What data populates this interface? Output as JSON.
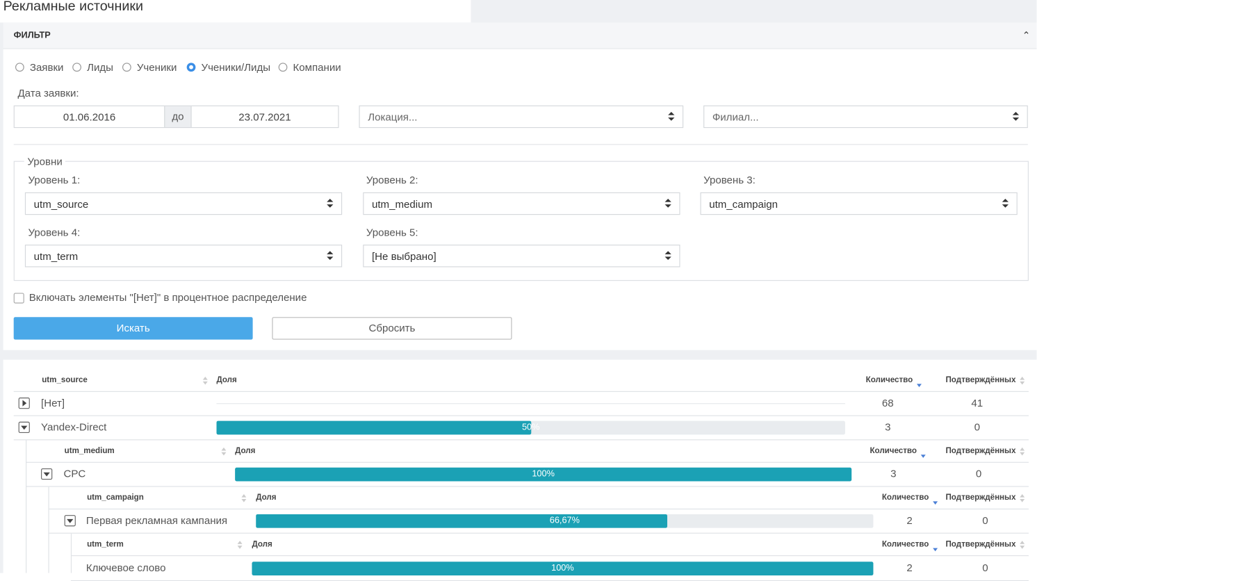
{
  "page": {
    "title": "Рекламные источники"
  },
  "filter": {
    "title": "ФИЛЬТР",
    "modes": [
      {
        "label": "Заявки",
        "selected": false
      },
      {
        "label": "Лиды",
        "selected": false
      },
      {
        "label": "Ученики",
        "selected": false
      },
      {
        "label": "Ученики/Лиды",
        "selected": true
      },
      {
        "label": "Компании",
        "selected": false
      }
    ],
    "date_label": "Дата заявки:",
    "date_from": "01.06.2016",
    "date_sep": "до",
    "date_to": "23.07.2021",
    "location": "Локация...",
    "branch": "Филиал...",
    "levels_title": "Уровни",
    "levels": [
      {
        "label": "Уровень 1:",
        "value": "utm_source"
      },
      {
        "label": "Уровень 2:",
        "value": "utm_medium"
      },
      {
        "label": "Уровень 3:",
        "value": "utm_campaign"
      },
      {
        "label": "Уровень 4:",
        "value": "utm_term"
      },
      {
        "label": "Уровень 5:",
        "value": "[Не выбрано]"
      }
    ],
    "include_none": "Включать элементы \"[Нет]\" в процентное распределение",
    "search": "Искать",
    "reset": "Сбросить"
  },
  "report": {
    "blocks": [
      {
        "header": {
          "name": "utm_source",
          "share": "Доля",
          "count": "Количество",
          "confirmed": "Подтверждённых"
        },
        "rows": [
          {
            "name": "[Нет]",
            "toggle": "collapsed",
            "count": 68,
            "confirmed": 41
          },
          {
            "name": "Yandex-Direct",
            "toggle": "expanded",
            "share": {
              "value": 50,
              "label": "50%"
            },
            "count": 3,
            "confirmed": 0
          }
        ]
      },
      {
        "header": {
          "name": "utm_medium",
          "share": "Доля",
          "count": "Количество",
          "confirmed": "Подтверждённых"
        },
        "rows": [
          {
            "name": "CPC",
            "toggle": "expanded",
            "share": {
              "value": 100,
              "label": "100%"
            },
            "count": 3,
            "confirmed": 0
          }
        ]
      },
      {
        "header": {
          "name": "utm_campaign",
          "share": "Доля",
          "count": "Количество",
          "confirmed": "Подтверждённых"
        },
        "rows": [
          {
            "name": "Первая рекламная кампания",
            "toggle": "expanded",
            "share": {
              "value": 66.67,
              "label": "66,67%"
            },
            "count": 2,
            "confirmed": 0
          }
        ]
      },
      {
        "header": {
          "name": "utm_term",
          "share": "Доля",
          "count": "Количество",
          "confirmed": "Подтверждённых"
        },
        "rows": [
          {
            "name": "Ключевое слово",
            "share": {
              "value": 100,
              "label": "100%"
            },
            "count": 2,
            "confirmed": 0
          }
        ]
      }
    ]
  }
}
